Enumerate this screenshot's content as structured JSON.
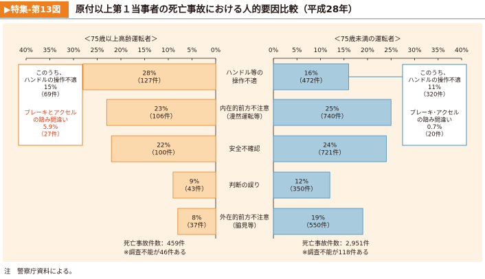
{
  "header": {
    "badge": "▶特集-第13図",
    "title": "原付以上第１当事者の死亡事故における人的要因比較（平成28年）"
  },
  "note": "注　警察庁資料による。",
  "colors": {
    "accent": "#ee7f1f",
    "panel_bg": "#fef3e2",
    "left_bar": "#fbd9ac",
    "left_bar_stroke": "#ee7f1f",
    "right_bar": "#a9cbde",
    "right_bar_stroke": "#3d8fc4",
    "red_text": "#e8380d"
  },
  "chart_data": [
    {
      "type": "bar",
      "orientation": "horizontal",
      "direction": "right-to-left",
      "title": "＜75歳以上高齢運転者＞",
      "categories": [
        "ハンドル等の\n操作不適",
        "内在的前方不注意\n（漫然運転等）",
        "安全不確認",
        "判断の誤り",
        "外在的前方不注意\n（脇見等）"
      ],
      "values": [
        28,
        23,
        22,
        9,
        8
      ],
      "data_labels": [
        "28%\n（127件）",
        "23%\n（106件）",
        "22%\n（100件）",
        "9%\n（43件）",
        "8%\n（37件）"
      ],
      "xlim": [
        0,
        40
      ],
      "x_ticks": [
        "40%",
        "35%",
        "30%",
        "25%",
        "20%",
        "15%",
        "10%",
        "5%",
        "0%"
      ],
      "total": "死亡事故件数：459件",
      "footnote": "※調査不能が46件ある",
      "callout": {
        "main": "このうち、\nハンドルの操作不適\n15%\n（69件）",
        "sub": "ブレーキとアクセル\nの踏み間違い\n5.9%\n（27件）"
      }
    },
    {
      "type": "bar",
      "orientation": "horizontal",
      "direction": "left-to-right",
      "title": "＜75歳未満の運転者＞",
      "categories": [
        "ハンドル等の\n操作不適",
        "内在的前方不注意\n（漫然運転等）",
        "安全不確認",
        "判断の誤り",
        "外在的前方不注意\n（脇見等）"
      ],
      "values": [
        16,
        25,
        24,
        12,
        19
      ],
      "data_labels": [
        "16%\n（472件）",
        "25%\n（740件）",
        "24%\n（721件）",
        "12%\n（350件）",
        "19%\n（550件）"
      ],
      "xlim": [
        0,
        40
      ],
      "x_ticks": [
        "0%",
        "5%",
        "10%",
        "15%",
        "20%",
        "25%",
        "30%",
        "35%",
        "40%"
      ],
      "total": "死亡事故件数：2,951件",
      "footnote": "※調査不能が118件ある",
      "callout": {
        "main": "このうち、\nハンドルの操作不適\n11%\n（320件）",
        "sub": "ブレーキ･アクセル\nの踏み間違い\n0.7%\n（20件）"
      }
    }
  ]
}
